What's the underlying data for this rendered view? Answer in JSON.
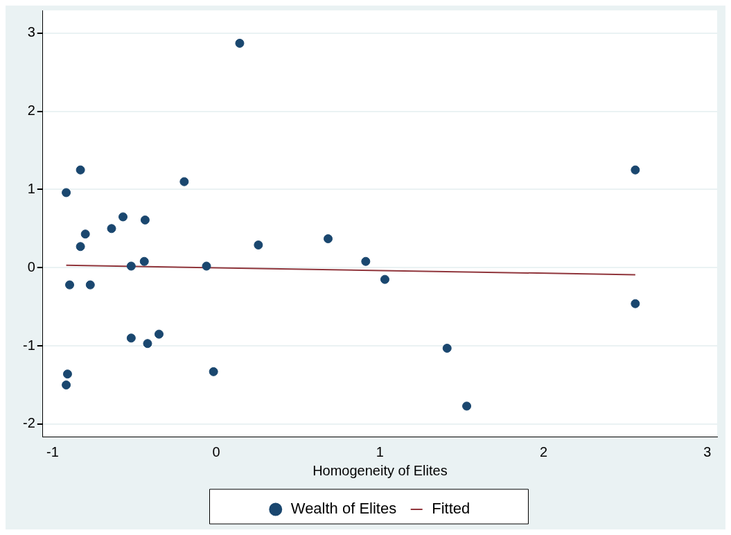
{
  "chart_data": {
    "type": "scatter",
    "xlabel": "Homogeneity of Elites",
    "xlim": [
      -1.06,
      3.06
    ],
    "xticks": [
      -1,
      0,
      1,
      2,
      3
    ],
    "ylim": [
      -2.16,
      3.29
    ],
    "yticks": [
      -2,
      -1,
      0,
      1,
      2,
      3
    ],
    "grid": "y",
    "legend": "bottom",
    "marker": "circle",
    "series": [
      {
        "name": "Wealth of Elites",
        "color": "#1a476f",
        "x": [
          -0.917,
          -0.83,
          -0.917,
          -0.909,
          -0.896,
          -0.77,
          -0.83,
          -0.8,
          -0.64,
          -0.57,
          -0.435,
          -0.52,
          -0.44,
          -0.52,
          -0.42,
          -0.35,
          -0.196,
          -0.06,
          -0.017,
          0.143,
          0.257,
          0.683,
          0.913,
          1.03,
          1.41,
          1.53,
          2.56,
          2.56
        ],
        "values": [
          0.96,
          1.25,
          -1.5,
          -1.36,
          -0.22,
          -0.22,
          0.27,
          0.43,
          0.5,
          0.65,
          0.61,
          0.02,
          0.08,
          -0.9,
          -0.97,
          -0.85,
          1.1,
          0.02,
          -1.33,
          2.87,
          0.29,
          0.37,
          0.08,
          -0.15,
          -1.03,
          -1.77,
          1.25,
          -0.46
        ]
      },
      {
        "name": "Fitted",
        "type": "line",
        "color": "#90353b",
        "marker": "none",
        "line_style": "solid",
        "x": [
          -0.917,
          2.56
        ],
        "values": [
          0.03,
          -0.09
        ]
      }
    ]
  }
}
